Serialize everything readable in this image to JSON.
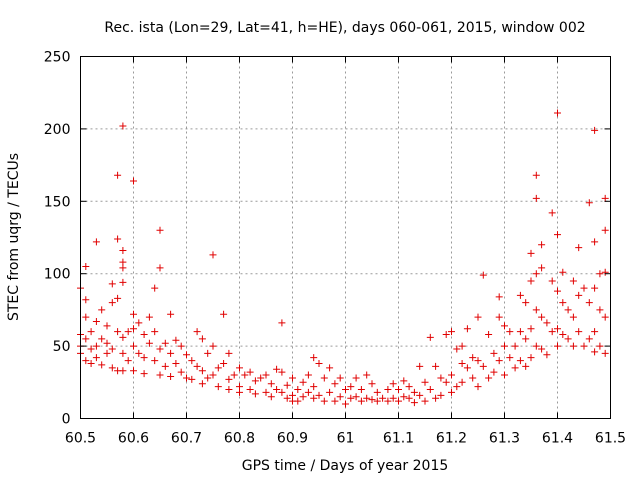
{
  "chart_data": {
    "type": "scatter",
    "title": "Rec. ista (Lon=29, Lat=41, h=HE), days 060-061, 2015, window 002",
    "xlabel": "GPS time / Days of year 2015",
    "ylabel": "STEC from uqrg / TECUs",
    "xlim": [
      60.5,
      61.5
    ],
    "ylim": [
      0,
      250
    ],
    "x_ticks": [
      "60.5",
      "60.6",
      "60.7",
      "60.8",
      "60.9",
      "61",
      "61.1",
      "61.2",
      "61.3",
      "61.4",
      "61.5"
    ],
    "y_ticks": [
      "0",
      "50",
      "100",
      "150",
      "200",
      "250"
    ],
    "grid": true,
    "marker": "+",
    "color": "#e00000",
    "series": [
      {
        "points": [
          [
            60.5,
            90
          ],
          [
            60.5,
            58
          ],
          [
            60.5,
            50
          ],
          [
            60.5,
            45
          ],
          [
            60.51,
            105
          ],
          [
            60.51,
            82
          ],
          [
            60.51,
            70
          ],
          [
            60.51,
            55
          ],
          [
            60.51,
            40
          ],
          [
            60.52,
            60
          ],
          [
            60.52,
            48
          ],
          [
            60.52,
            38
          ],
          [
            60.53,
            122
          ],
          [
            60.53,
            67
          ],
          [
            60.53,
            50
          ],
          [
            60.53,
            42
          ],
          [
            60.54,
            75
          ],
          [
            60.54,
            55
          ],
          [
            60.54,
            37
          ],
          [
            60.55,
            64
          ],
          [
            60.55,
            52
          ],
          [
            60.55,
            45
          ],
          [
            60.56,
            93
          ],
          [
            60.56,
            80
          ],
          [
            60.56,
            48
          ],
          [
            60.56,
            35
          ],
          [
            60.57,
            168
          ],
          [
            60.57,
            124
          ],
          [
            60.57,
            83
          ],
          [
            60.57,
            60
          ],
          [
            60.57,
            33
          ],
          [
            60.58,
            202
          ],
          [
            60.58,
            116
          ],
          [
            60.58,
            108
          ],
          [
            60.58,
            104
          ],
          [
            60.58,
            94
          ],
          [
            60.58,
            56
          ],
          [
            60.58,
            45
          ],
          [
            60.58,
            33
          ],
          [
            60.59,
            60
          ],
          [
            60.59,
            40
          ],
          [
            60.6,
            164
          ],
          [
            60.6,
            72
          ],
          [
            60.6,
            62
          ],
          [
            60.6,
            50
          ],
          [
            60.6,
            33
          ],
          [
            60.61,
            66
          ],
          [
            60.61,
            45
          ],
          [
            60.62,
            58
          ],
          [
            60.62,
            42
          ],
          [
            60.62,
            31
          ],
          [
            60.63,
            70
          ],
          [
            60.63,
            52
          ],
          [
            60.64,
            90
          ],
          [
            60.64,
            60
          ],
          [
            60.64,
            40
          ],
          [
            60.65,
            130
          ],
          [
            60.65,
            104
          ],
          [
            60.65,
            48
          ],
          [
            60.65,
            30
          ],
          [
            60.66,
            52
          ],
          [
            60.66,
            36
          ],
          [
            60.67,
            72
          ],
          [
            60.67,
            45
          ],
          [
            60.67,
            29
          ],
          [
            60.68,
            54
          ],
          [
            60.68,
            38
          ],
          [
            60.69,
            50
          ],
          [
            60.69,
            32
          ],
          [
            60.7,
            44
          ],
          [
            60.7,
            28
          ],
          [
            60.71,
            40
          ],
          [
            60.71,
            27
          ],
          [
            60.72,
            60
          ],
          [
            60.72,
            36
          ],
          [
            60.73,
            55
          ],
          [
            60.73,
            33
          ],
          [
            60.73,
            24
          ],
          [
            60.74,
            45
          ],
          [
            60.74,
            28
          ],
          [
            60.75,
            113
          ],
          [
            60.75,
            50
          ],
          [
            60.75,
            30
          ],
          [
            60.76,
            35
          ],
          [
            60.76,
            22
          ],
          [
            60.77,
            72
          ],
          [
            60.77,
            38
          ],
          [
            60.78,
            45
          ],
          [
            60.78,
            27
          ],
          [
            60.78,
            20
          ],
          [
            60.79,
            30
          ],
          [
            60.8,
            35
          ],
          [
            60.8,
            22
          ],
          [
            60.8,
            18
          ],
          [
            60.81,
            30
          ],
          [
            60.82,
            32
          ],
          [
            60.82,
            20
          ],
          [
            60.83,
            26
          ],
          [
            60.83,
            17
          ],
          [
            60.84,
            28
          ],
          [
            60.85,
            30
          ],
          [
            60.85,
            18
          ],
          [
            60.86,
            24
          ],
          [
            60.86,
            15
          ],
          [
            60.87,
            34
          ],
          [
            60.87,
            20
          ],
          [
            60.88,
            66
          ],
          [
            60.88,
            32
          ],
          [
            60.88,
            18
          ],
          [
            60.89,
            23
          ],
          [
            60.89,
            14
          ],
          [
            60.9,
            28
          ],
          [
            60.9,
            16
          ],
          [
            60.9,
            12
          ],
          [
            60.91,
            20
          ],
          [
            60.91,
            12
          ],
          [
            60.92,
            25
          ],
          [
            60.92,
            15
          ],
          [
            60.93,
            30
          ],
          [
            60.93,
            18
          ],
          [
            60.94,
            42
          ],
          [
            60.94,
            22
          ],
          [
            60.94,
            14
          ],
          [
            60.95,
            38
          ],
          [
            60.95,
            16
          ],
          [
            60.96,
            28
          ],
          [
            60.96,
            12
          ],
          [
            60.97,
            35
          ],
          [
            60.97,
            18
          ],
          [
            60.98,
            24
          ],
          [
            60.98,
            12
          ],
          [
            60.99,
            28
          ],
          [
            60.99,
            15
          ],
          [
            61.0,
            20
          ],
          [
            61.0,
            10
          ],
          [
            61.01,
            22
          ],
          [
            61.01,
            14
          ],
          [
            61.02,
            28
          ],
          [
            61.02,
            15
          ],
          [
            61.03,
            20
          ],
          [
            61.03,
            12
          ],
          [
            61.04,
            30
          ],
          [
            61.04,
            14
          ],
          [
            61.05,
            24
          ],
          [
            61.05,
            13
          ],
          [
            61.06,
            18
          ],
          [
            61.06,
            12
          ],
          [
            61.07,
            14
          ],
          [
            61.08,
            20
          ],
          [
            61.08,
            12
          ],
          [
            61.09,
            24
          ],
          [
            61.09,
            14
          ],
          [
            61.1,
            20
          ],
          [
            61.1,
            12
          ],
          [
            61.11,
            26
          ],
          [
            61.11,
            15
          ],
          [
            61.12,
            22
          ],
          [
            61.12,
            14
          ],
          [
            61.13,
            18
          ],
          [
            61.13,
            11
          ],
          [
            61.14,
            36
          ],
          [
            61.14,
            16
          ],
          [
            61.15,
            25
          ],
          [
            61.15,
            12
          ],
          [
            61.16,
            56
          ],
          [
            61.16,
            20
          ],
          [
            61.17,
            36
          ],
          [
            61.17,
            14
          ],
          [
            61.18,
            28
          ],
          [
            61.18,
            16
          ],
          [
            61.19,
            58
          ],
          [
            61.19,
            25
          ],
          [
            61.2,
            60
          ],
          [
            61.2,
            30
          ],
          [
            61.2,
            18
          ],
          [
            61.21,
            48
          ],
          [
            61.21,
            22
          ],
          [
            61.22,
            50
          ],
          [
            61.22,
            38
          ],
          [
            61.22,
            25
          ],
          [
            61.23,
            62
          ],
          [
            61.23,
            35
          ],
          [
            61.24,
            42
          ],
          [
            61.24,
            28
          ],
          [
            61.25,
            70
          ],
          [
            61.25,
            40
          ],
          [
            61.25,
            22
          ],
          [
            61.26,
            99
          ],
          [
            61.26,
            36
          ],
          [
            61.27,
            58
          ],
          [
            61.27,
            28
          ],
          [
            61.28,
            45
          ],
          [
            61.28,
            32
          ],
          [
            61.29,
            84
          ],
          [
            61.29,
            70
          ],
          [
            61.29,
            40
          ],
          [
            61.3,
            64
          ],
          [
            61.3,
            50
          ],
          [
            61.3,
            30
          ],
          [
            61.31,
            60
          ],
          [
            61.31,
            42
          ],
          [
            61.32,
            50
          ],
          [
            61.32,
            35
          ],
          [
            61.33,
            85
          ],
          [
            61.33,
            60
          ],
          [
            61.33,
            40
          ],
          [
            61.34,
            80
          ],
          [
            61.34,
            55
          ],
          [
            61.34,
            36
          ],
          [
            61.35,
            114
          ],
          [
            61.35,
            95
          ],
          [
            61.35,
            62
          ],
          [
            61.35,
            42
          ],
          [
            61.36,
            168
          ],
          [
            61.36,
            152
          ],
          [
            61.36,
            100
          ],
          [
            61.36,
            75
          ],
          [
            61.36,
            50
          ],
          [
            61.37,
            120
          ],
          [
            61.37,
            104
          ],
          [
            61.37,
            70
          ],
          [
            61.37,
            48
          ],
          [
            61.38,
            66
          ],
          [
            61.38,
            44
          ],
          [
            61.39,
            142
          ],
          [
            61.39,
            95
          ],
          [
            61.39,
            60
          ],
          [
            61.4,
            211
          ],
          [
            61.4,
            127
          ],
          [
            61.4,
            88
          ],
          [
            61.4,
            62
          ],
          [
            61.4,
            50
          ],
          [
            61.41,
            101
          ],
          [
            61.41,
            80
          ],
          [
            61.41,
            58
          ],
          [
            61.42,
            75
          ],
          [
            61.42,
            55
          ],
          [
            61.43,
            95
          ],
          [
            61.43,
            70
          ],
          [
            61.43,
            50
          ],
          [
            61.44,
            118
          ],
          [
            61.44,
            85
          ],
          [
            61.44,
            60
          ],
          [
            61.45,
            90
          ],
          [
            61.45,
            50
          ],
          [
            61.46,
            149
          ],
          [
            61.46,
            80
          ],
          [
            61.46,
            55
          ],
          [
            61.47,
            199
          ],
          [
            61.47,
            122
          ],
          [
            61.47,
            90
          ],
          [
            61.47,
            60
          ],
          [
            61.47,
            46
          ],
          [
            61.48,
            100
          ],
          [
            61.48,
            75
          ],
          [
            61.48,
            50
          ],
          [
            61.49,
            152
          ],
          [
            61.49,
            130
          ],
          [
            61.49,
            101
          ],
          [
            61.49,
            70
          ],
          [
            61.49,
            45
          ]
        ]
      }
    ]
  }
}
